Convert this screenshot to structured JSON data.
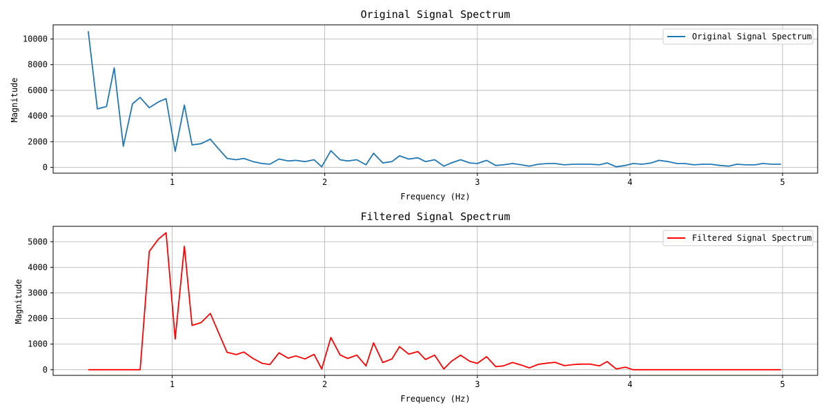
{
  "chart_data": [
    {
      "type": "line",
      "title": "Original Signal Spectrum",
      "xlabel": "Frequency (Hz)",
      "ylabel": "Magnitude",
      "xlim": [
        0.22,
        5.23
      ],
      "ylim": [
        -450,
        11100
      ],
      "xticks": [
        1,
        2,
        3,
        4,
        5
      ],
      "yticks": [
        0,
        2000,
        4000,
        6000,
        8000,
        10000
      ],
      "grid": true,
      "legend": "top-right",
      "series": [
        {
          "name": "Original Signal Spectrum",
          "color": "#1f77b4",
          "x": [
            0.45,
            0.51,
            0.57,
            0.62,
            0.68,
            0.74,
            0.79,
            0.85,
            0.91,
            0.96,
            1.02,
            1.08,
            1.13,
            1.19,
            1.25,
            1.3,
            1.36,
            1.42,
            1.47,
            1.53,
            1.59,
            1.64,
            1.7,
            1.76,
            1.81,
            1.87,
            1.93,
            1.98,
            2.04,
            2.1,
            2.15,
            2.21,
            2.27,
            2.32,
            2.38,
            2.44,
            2.49,
            2.55,
            2.61,
            2.66,
            2.72,
            2.78,
            2.83,
            2.89,
            2.95,
            3.0,
            3.06,
            3.12,
            3.17,
            3.23,
            3.29,
            3.34,
            3.4,
            3.46,
            3.51,
            3.57,
            3.63,
            3.68,
            3.74,
            3.8,
            3.85,
            3.91,
            3.97,
            4.02,
            4.08,
            4.14,
            4.19,
            4.25,
            4.31,
            4.36,
            4.42,
            4.48,
            4.53,
            4.59,
            4.65,
            4.7,
            4.76,
            4.82,
            4.87,
            4.93,
            4.99
          ],
          "values": [
            10600,
            4550,
            4750,
            7750,
            1650,
            4950,
            5450,
            4650,
            5100,
            5350,
            1250,
            4850,
            1750,
            1850,
            2200,
            1500,
            700,
            600,
            700,
            450,
            300,
            250,
            650,
            500,
            550,
            450,
            600,
            50,
            1300,
            600,
            500,
            600,
            200,
            1100,
            350,
            450,
            900,
            650,
            750,
            450,
            600,
            100,
            350,
            600,
            350,
            300,
            550,
            150,
            200,
            300,
            200,
            100,
            250,
            300,
            300,
            200,
            250,
            250,
            250,
            200,
            350,
            50,
            150,
            300,
            250,
            350,
            550,
            450,
            300,
            300,
            200,
            250,
            250,
            150,
            100,
            250,
            200,
            200,
            300,
            250,
            250
          ]
        }
      ]
    },
    {
      "type": "line",
      "title": "Filtered Signal Spectrum",
      "xlabel": "Frequency (Hz)",
      "ylabel": "Magnitude",
      "xlim": [
        0.22,
        5.23
      ],
      "ylim": [
        -220,
        5600
      ],
      "xticks": [
        1,
        2,
        3,
        4,
        5
      ],
      "yticks": [
        0,
        1000,
        2000,
        3000,
        4000,
        5000
      ],
      "grid": true,
      "legend": "top-right",
      "series": [
        {
          "name": "Filtered Signal Spectrum",
          "color": "#ff0000",
          "x": [
            0.45,
            0.51,
            0.57,
            0.62,
            0.68,
            0.74,
            0.79,
            0.85,
            0.91,
            0.96,
            1.02,
            1.08,
            1.13,
            1.19,
            1.25,
            1.3,
            1.36,
            1.42,
            1.47,
            1.53,
            1.59,
            1.64,
            1.7,
            1.76,
            1.81,
            1.87,
            1.93,
            1.98,
            2.04,
            2.1,
            2.15,
            2.21,
            2.27,
            2.32,
            2.38,
            2.44,
            2.49,
            2.55,
            2.61,
            2.66,
            2.72,
            2.78,
            2.83,
            2.89,
            2.95,
            3.0,
            3.06,
            3.12,
            3.17,
            3.23,
            3.29,
            3.34,
            3.4,
            3.46,
            3.51,
            3.57,
            3.63,
            3.68,
            3.74,
            3.8,
            3.85,
            3.91,
            3.97,
            4.02,
            4.08,
            4.14,
            4.19,
            4.25,
            4.31,
            4.36,
            4.42,
            4.48,
            4.53,
            4.59,
            4.65,
            4.7,
            4.76,
            4.82,
            4.87,
            4.93,
            4.99
          ],
          "values": [
            0,
            0,
            0,
            0,
            0,
            0,
            0,
            4620,
            5100,
            5350,
            1200,
            4820,
            1730,
            1840,
            2200,
            1500,
            680,
            590,
            690,
            440,
            250,
            200,
            660,
            450,
            540,
            420,
            600,
            30,
            1260,
            580,
            440,
            570,
            150,
            1050,
            280,
            420,
            900,
            610,
            710,
            400,
            570,
            30,
            330,
            570,
            330,
            250,
            510,
            120,
            150,
            280,
            180,
            70,
            210,
            260,
            290,
            160,
            200,
            220,
            220,
            150,
            320,
            30,
            100,
            0,
            0,
            0,
            0,
            0,
            0,
            0,
            0,
            0,
            0,
            0,
            0,
            0,
            0,
            0,
            0,
            0,
            0
          ]
        }
      ]
    }
  ]
}
